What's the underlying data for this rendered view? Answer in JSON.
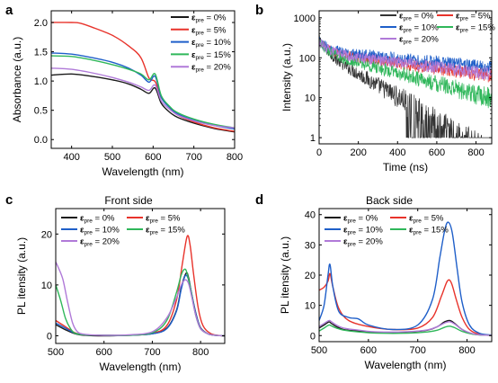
{
  "colors": {
    "black": "#1a1a1a",
    "red": "#e8332b",
    "blue": "#1f5fc9",
    "green": "#2fb75a",
    "purple": "#b07ad8",
    "gray": "#333333"
  },
  "chart_data": [
    {
      "panel": "a",
      "type": "line",
      "title": "",
      "xlabel": "Wavelength (nm)",
      "ylabel": "Absorbance (a.u.)",
      "xlim": [
        350,
        800
      ],
      "ylim": [
        -0.15,
        2.2
      ],
      "xticks": [
        400,
        500,
        600,
        700,
        800
      ],
      "yticks": [
        0.0,
        0.5,
        1.0,
        1.5,
        2.0
      ],
      "yticklabels": [
        "0.0",
        "0.5",
        "1.0",
        "1.5",
        "2.0"
      ],
      "legend_position": "top-right",
      "legend_cols": 1,
      "series": [
        {
          "name": "ε_pre = 0%",
          "color_key": "black",
          "x": [
            350,
            400,
            450,
            500,
            540,
            570,
            590,
            605,
            620,
            640,
            660,
            700,
            750,
            800
          ],
          "y": [
            1.1,
            1.12,
            1.08,
            1.02,
            0.95,
            0.86,
            0.79,
            0.88,
            0.62,
            0.47,
            0.38,
            0.28,
            0.19,
            0.13
          ]
        },
        {
          "name": "ε_pre = 5%",
          "color_key": "red",
          "x": [
            350,
            400,
            420,
            450,
            500,
            540,
            570,
            590,
            605,
            620,
            640,
            660,
            700,
            750,
            800
          ],
          "y": [
            2.0,
            2.0,
            1.99,
            1.92,
            1.78,
            1.6,
            1.4,
            1.05,
            0.99,
            0.72,
            0.55,
            0.42,
            0.3,
            0.2,
            0.14
          ]
        },
        {
          "name": "ε_pre = 10%",
          "color_key": "blue",
          "x": [
            350,
            400,
            450,
            500,
            540,
            570,
            590,
            605,
            620,
            640,
            660,
            700,
            750,
            800
          ],
          "y": [
            1.48,
            1.46,
            1.4,
            1.32,
            1.22,
            1.1,
            0.98,
            1.08,
            0.72,
            0.55,
            0.44,
            0.33,
            0.24,
            0.18
          ]
        },
        {
          "name": "ε_pre = 15%",
          "color_key": "green",
          "x": [
            350,
            400,
            450,
            500,
            540,
            570,
            590,
            605,
            620,
            640,
            660,
            700,
            750,
            800
          ],
          "y": [
            1.43,
            1.42,
            1.36,
            1.28,
            1.2,
            1.12,
            1.02,
            1.12,
            0.75,
            0.57,
            0.46,
            0.35,
            0.26,
            0.2
          ]
        },
        {
          "name": "ε_pre = 20%",
          "color_key": "purple",
          "x": [
            350,
            400,
            450,
            500,
            540,
            570,
            590,
            605,
            620,
            640,
            660,
            700,
            750,
            800
          ],
          "y": [
            1.22,
            1.2,
            1.14,
            1.06,
            0.98,
            0.9,
            0.84,
            0.93,
            0.66,
            0.52,
            0.42,
            0.32,
            0.24,
            0.2
          ]
        }
      ]
    },
    {
      "panel": "b",
      "type": "line",
      "title": "",
      "xlabel": "Time (ns)",
      "ylabel": "Intensity (a.u.)",
      "xlim": [
        0,
        880
      ],
      "ylim": [
        0.7,
        1500
      ],
      "log_y": true,
      "xticks": [
        0,
        200,
        400,
        600,
        800
      ],
      "yticks": [
        1,
        10,
        100,
        1000
      ],
      "yticklabels": [
        "1",
        "10",
        "100",
        "1000"
      ],
      "legend_position": "top-right",
      "legend_cols": 2,
      "noisy_decay": true,
      "series": [
        {
          "name": "ε_pre = 0%",
          "color_key": "gray",
          "peak": 300,
          "tau_fast": 30,
          "tau_slow": 150,
          "fast_fraction": 0.5
        },
        {
          "name": "ε_pre = 5%",
          "color_key": "red",
          "peak": 250,
          "tau_fast": 40,
          "tau_slow": 650,
          "fast_fraction": 0.45
        },
        {
          "name": "ε_pre = 10%",
          "color_key": "blue",
          "peak": 260,
          "tau_fast": 40,
          "tau_slow": 900,
          "fast_fraction": 0.4
        },
        {
          "name": "ε_pre = 15%",
          "color_key": "green",
          "peak": 250,
          "tau_fast": 35,
          "tau_slow": 330,
          "fast_fraction": 0.45
        },
        {
          "name": "ε_pre = 20%",
          "color_key": "purple",
          "peak": 250,
          "tau_fast": 40,
          "tau_slow": 700,
          "fast_fraction": 0.45
        }
      ]
    },
    {
      "panel": "c",
      "type": "line",
      "title": "Front side",
      "xlabel": "Wavelength (nm)",
      "ylabel": "PL itensity (a.u.)",
      "xlim": [
        500,
        850
      ],
      "ylim": [
        -1.5,
        25
      ],
      "xticks": [
        500,
        600,
        700,
        800
      ],
      "yticks": [
        0,
        10,
        20
      ],
      "yticklabels": [
        "0",
        "10",
        "20"
      ],
      "legend_position": "top-left",
      "legend_cols": 2,
      "series": [
        {
          "name": "ε_pre = 0%",
          "color_key": "black",
          "x": [
            500,
            520,
            540,
            560,
            600,
            650,
            700,
            730,
            750,
            760,
            770,
            775,
            780,
            790,
            800,
            815,
            830,
            850
          ],
          "y": [
            2.2,
            1.2,
            0.4,
            0.1,
            0.0,
            0.1,
            0.4,
            1.5,
            5.0,
            9.5,
            12.3,
            11.5,
            9.0,
            4.5,
            1.6,
            0.4,
            0.1,
            0.0
          ]
        },
        {
          "name": "ε_pre = 5%",
          "color_key": "red",
          "x": [
            500,
            520,
            540,
            560,
            600,
            650,
            700,
            730,
            750,
            762,
            772,
            778,
            785,
            795,
            805,
            820,
            835,
            850
          ],
          "y": [
            3.0,
            1.8,
            0.6,
            0.2,
            0.1,
            0.1,
            0.5,
            2.0,
            7.0,
            14.0,
            19.5,
            18.0,
            12.5,
            5.5,
            2.0,
            0.5,
            0.1,
            0.0
          ]
        },
        {
          "name": "ε_pre = 10%",
          "color_key": "blue",
          "x": [
            500,
            520,
            540,
            560,
            600,
            650,
            700,
            730,
            750,
            760,
            768,
            774,
            780,
            790,
            800,
            815,
            830,
            850
          ],
          "y": [
            2.5,
            1.5,
            0.5,
            0.2,
            0.1,
            0.1,
            0.4,
            1.4,
            4.8,
            9.2,
            11.8,
            11.3,
            9.0,
            4.4,
            1.5,
            0.4,
            0.1,
            0.0
          ]
        },
        {
          "name": "ε_pre = 15%",
          "color_key": "green",
          "x": [
            500,
            510,
            520,
            530,
            540,
            560,
            600,
            650,
            700,
            730,
            750,
            760,
            767,
            772,
            780,
            790,
            800,
            815,
            830,
            850
          ],
          "y": [
            10.0,
            7.0,
            3.5,
            1.5,
            0.5,
            0.2,
            0.1,
            0.1,
            0.6,
            3.0,
            8.5,
            12.0,
            13.1,
            12.3,
            8.8,
            4.0,
            1.4,
            0.4,
            0.1,
            0.0
          ]
        },
        {
          "name": "ε_pre = 20%",
          "color_key": "purple",
          "x": [
            500,
            505,
            515,
            525,
            535,
            545,
            560,
            600,
            650,
            700,
            730,
            750,
            760,
            768,
            775,
            782,
            790,
            800,
            815,
            830,
            850
          ],
          "y": [
            14.5,
            13.5,
            11.0,
            6.5,
            2.5,
            0.8,
            0.3,
            0.1,
            0.2,
            0.8,
            3.5,
            7.5,
            10.0,
            11.0,
            10.3,
            7.5,
            4.0,
            1.4,
            0.4,
            0.1,
            0.0
          ]
        }
      ]
    },
    {
      "panel": "d",
      "type": "line",
      "title": "Back side",
      "xlabel": "Wavelength (nm)",
      "ylabel": "PL itensity (a.u.)",
      "xlim": [
        500,
        850
      ],
      "ylim": [
        -2,
        42
      ],
      "xticks": [
        500,
        600,
        700,
        800
      ],
      "yticks": [
        0,
        10,
        20,
        30,
        40
      ],
      "yticklabels": [
        "0",
        "10",
        "20",
        "30",
        "40"
      ],
      "legend_position": "top-left",
      "legend_cols": 2,
      "series": [
        {
          "name": "ε_pre = 0%",
          "color_key": "black",
          "x": [
            500,
            510,
            520,
            525,
            535,
            550,
            580,
            620,
            680,
            720,
            740,
            755,
            765,
            775,
            790,
            810,
            830,
            850
          ],
          "y": [
            2.5,
            3.5,
            4.5,
            4.0,
            3.0,
            2.0,
            1.5,
            1.0,
            1.2,
            1.8,
            3.0,
            4.6,
            5.0,
            4.0,
            2.0,
            0.6,
            0.2,
            0.1
          ]
        },
        {
          "name": "ε_pre = 5%",
          "color_key": "red",
          "x": [
            500,
            510,
            518,
            522,
            528,
            540,
            560,
            600,
            650,
            700,
            730,
            748,
            760,
            768,
            778,
            790,
            805,
            825,
            850
          ],
          "y": [
            15.0,
            16.0,
            18.0,
            20.5,
            16.0,
            9.0,
            5.0,
            3.0,
            2.0,
            2.5,
            6.0,
            13.0,
            18.0,
            17.5,
            12.0,
            6.0,
            2.0,
            0.5,
            0.1
          ]
        },
        {
          "name": "ε_pre = 10%",
          "color_key": "blue",
          "x": [
            500,
            510,
            518,
            522,
            528,
            540,
            560,
            580,
            600,
            650,
            700,
            730,
            745,
            755,
            762,
            770,
            780,
            790,
            805,
            825,
            850
          ],
          "y": [
            5.0,
            10.0,
            20.0,
            23.5,
            16.0,
            8.0,
            6.0,
            5.5,
            3.5,
            2.0,
            3.5,
            12.0,
            26.0,
            35.0,
            37.5,
            34.0,
            22.0,
            11.0,
            3.5,
            0.8,
            0.2
          ]
        },
        {
          "name": "ε_pre = 15%",
          "color_key": "green",
          "x": [
            500,
            510,
            520,
            525,
            535,
            550,
            580,
            620,
            680,
            720,
            740,
            755,
            765,
            775,
            790,
            810,
            830,
            850
          ],
          "y": [
            1.5,
            2.5,
            3.5,
            3.2,
            2.5,
            1.8,
            1.2,
            0.8,
            0.8,
            1.2,
            1.8,
            2.8,
            3.1,
            2.6,
            1.4,
            0.5,
            0.2,
            0.1
          ]
        },
        {
          "name": "ε_pre = 20%",
          "color_key": "purple",
          "x": [
            500,
            510,
            520,
            525,
            535,
            550,
            580,
            620,
            680,
            720,
            740,
            755,
            765,
            775,
            790,
            810,
            830,
            850
          ],
          "y": [
            3.0,
            4.0,
            5.0,
            4.6,
            3.5,
            2.5,
            1.8,
            1.2,
            1.3,
            1.9,
            3.0,
            4.2,
            4.6,
            3.8,
            2.0,
            0.7,
            0.2,
            0.1
          ]
        }
      ]
    }
  ],
  "panels": {
    "a": {
      "label": "a"
    },
    "b": {
      "label": "b"
    },
    "c": {
      "label": "c",
      "title": "Front side"
    },
    "d": {
      "label": "d",
      "title": "Back side"
    }
  }
}
